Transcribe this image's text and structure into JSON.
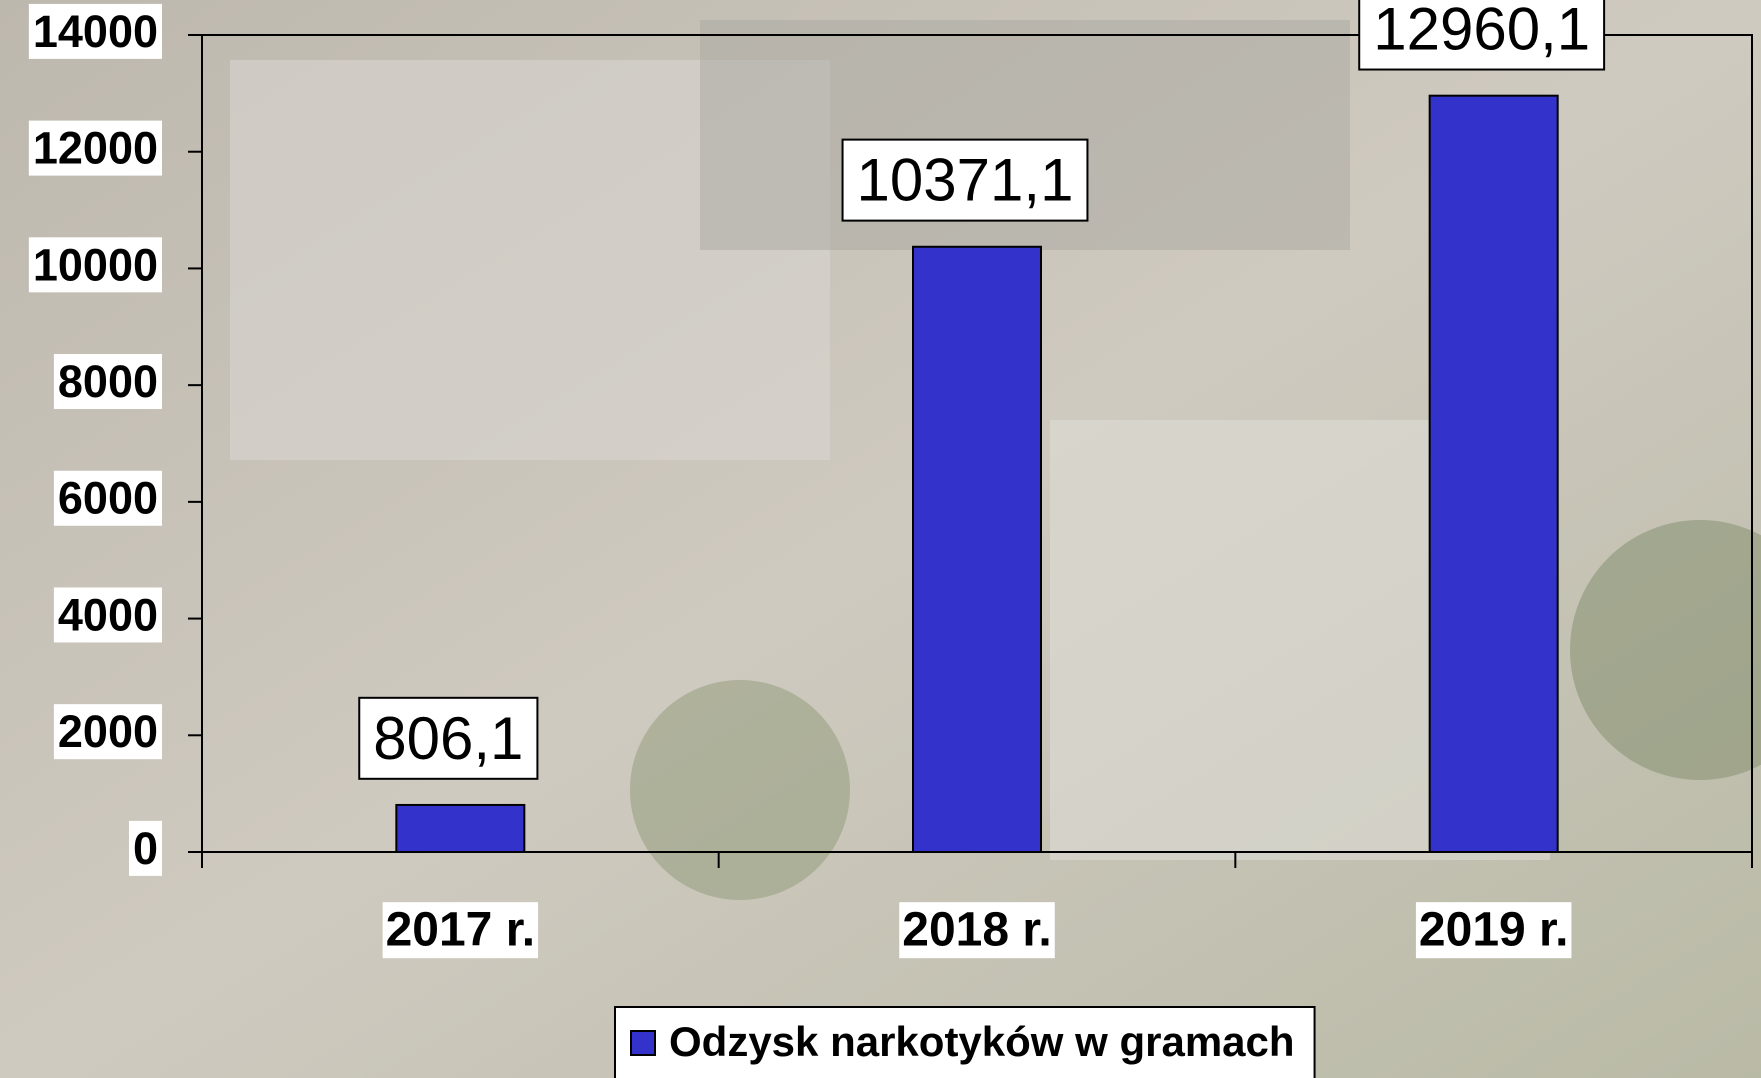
{
  "chart_data": {
    "type": "bar",
    "categories": [
      "2017 r.",
      "2018 r.",
      "2019 r."
    ],
    "series": [
      {
        "name": "Odzysk narkotyków w gramach",
        "color": "#3333cc",
        "values": [
          806.1,
          10371.1,
          12960.1
        ],
        "value_labels": [
          "806,1",
          "10371,1",
          "12960,1"
        ]
      }
    ],
    "ylim": [
      0,
      14000
    ],
    "yticks": [
      0,
      2000,
      4000,
      6000,
      8000,
      10000,
      12000,
      14000
    ],
    "grid": false,
    "legend": "bottom"
  }
}
